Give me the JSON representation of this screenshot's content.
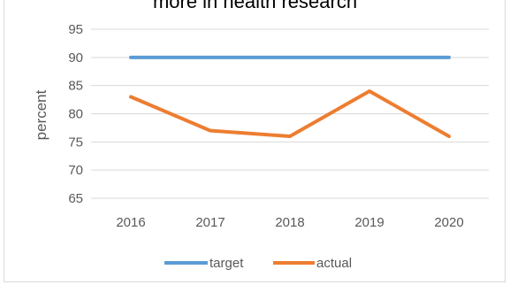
{
  "chart_data": {
    "type": "line",
    "title": "more in health research",
    "xlabel": "",
    "ylabel": "percent",
    "categories": [
      "2016",
      "2017",
      "2018",
      "2019",
      "2020"
    ],
    "ylim": [
      65,
      95
    ],
    "yticks": [
      65,
      70,
      75,
      80,
      85,
      90,
      95
    ],
    "grid": true,
    "legend_position": "bottom",
    "series": [
      {
        "name": "target",
        "values": [
          90,
          90,
          90,
          90,
          90
        ],
        "color": "#5b9bd5"
      },
      {
        "name": "actual",
        "values": [
          83,
          77,
          76,
          84,
          76
        ],
        "color": "#ed7d31"
      }
    ]
  }
}
